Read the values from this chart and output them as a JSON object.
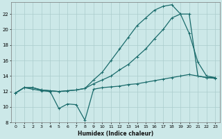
{
  "xlabel": "Humidex (Indice chaleur)",
  "bg_color": "#cce8e8",
  "grid_color": "#aacccc",
  "line_color": "#1a6b6b",
  "xlim": [
    -0.5,
    23.5
  ],
  "ylim": [
    8,
    23.5
  ],
  "yticks": [
    8,
    10,
    12,
    14,
    16,
    18,
    20,
    22
  ],
  "xticks": [
    0,
    1,
    2,
    3,
    4,
    5,
    6,
    7,
    8,
    9,
    10,
    11,
    12,
    13,
    14,
    15,
    16,
    17,
    18,
    19,
    20,
    21,
    22,
    23
  ],
  "line1_x": [
    0,
    1,
    2,
    3,
    4,
    5,
    6,
    7,
    8,
    9,
    10,
    11,
    12,
    13,
    14,
    15,
    16,
    17,
    18,
    19,
    20,
    21,
    22,
    23
  ],
  "line1_y": [
    11.8,
    12.5,
    12.5,
    12.2,
    12.1,
    12.0,
    12.1,
    12.2,
    12.4,
    13.5,
    14.5,
    16.0,
    17.5,
    19.0,
    20.5,
    21.5,
    22.5,
    23.0,
    23.2,
    22.0,
    19.5,
    15.8,
    14.0,
    13.8
  ],
  "line2_x": [
    0,
    1,
    2,
    3,
    4,
    5,
    6,
    7,
    8,
    9,
    10,
    11,
    12,
    13,
    14,
    15,
    16,
    17,
    18,
    19,
    20,
    21,
    22,
    23
  ],
  "line2_y": [
    11.8,
    12.5,
    12.5,
    12.2,
    12.1,
    12.0,
    12.1,
    12.2,
    12.4,
    13.0,
    13.5,
    14.0,
    14.8,
    15.5,
    16.5,
    17.5,
    18.8,
    20.0,
    21.5,
    22.0,
    22.0,
    14.0,
    13.8,
    13.8
  ],
  "line3_x": [
    0,
    1,
    2,
    3,
    4,
    5,
    6,
    7,
    8,
    9,
    10,
    11,
    12,
    13,
    14,
    15,
    16,
    17,
    18,
    19,
    20,
    21,
    22,
    23
  ],
  "line3_y": [
    11.8,
    12.5,
    12.3,
    12.1,
    12.0,
    9.8,
    10.4,
    10.3,
    8.3,
    12.3,
    12.5,
    12.6,
    12.7,
    12.9,
    13.0,
    13.2,
    13.4,
    13.6,
    13.8,
    14.0,
    14.2,
    14.0,
    13.8,
    13.7
  ]
}
